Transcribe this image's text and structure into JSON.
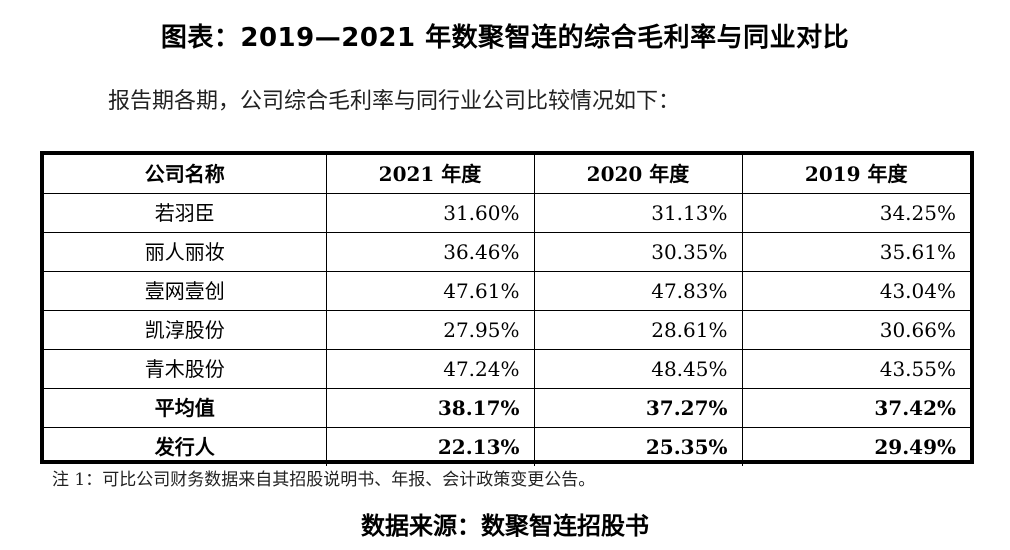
{
  "title": "图表：2019—2021 年数聚智连的综合毛利率与同业对比",
  "intro": "报告期各期，公司综合毛利率与同行业公司比较情况如下：",
  "table": {
    "headers": [
      "公司名称",
      "2021 年度",
      "2020 年度",
      "2019 年度"
    ],
    "rows": [
      [
        "若羽臣",
        "31.60%",
        "31.13%",
        "34.25%"
      ],
      [
        "丽人丽妆",
        "36.46%",
        "30.35%",
        "35.61%"
      ],
      [
        "壹网壹创",
        "47.61%",
        "47.83%",
        "43.04%"
      ],
      [
        "凯淳股份",
        "27.95%",
        "28.61%",
        "30.66%"
      ],
      [
        "青木股份",
        "47.24%",
        "48.45%",
        "43.55%"
      ],
      [
        "平均值",
        "38.17%",
        "37.27%",
        "37.42%"
      ],
      [
        "发行人",
        "22.13%",
        "25.35%",
        "29.49%"
      ]
    ]
  },
  "note": "注 1：可比公司财务数据来自其招股说明书、年报、会计政策变更公告。",
  "source": "数据来源：数聚智连招股书"
}
